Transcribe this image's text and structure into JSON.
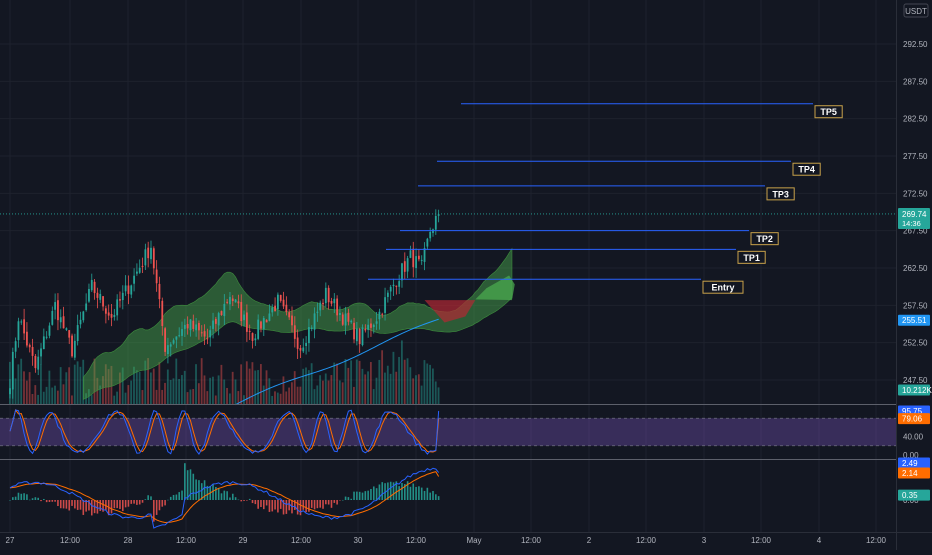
{
  "chart_data": [
    {
      "type": "candlestick",
      "currency": "USDT",
      "x_ticks": [
        "27",
        "12:00",
        "28",
        "12:00",
        "29",
        "12:00",
        "30",
        "12:00",
        "May",
        "12:00",
        "2",
        "12:00",
        "3",
        "12:00",
        "4",
        "12:00"
      ],
      "y_ticks": [
        "292.50",
        "287.50",
        "282.50",
        "277.50",
        "272.50",
        "267.50",
        "262.50",
        "257.50",
        "252.50",
        "247.50"
      ],
      "ylim": [
        244.2,
        297.5
      ],
      "last_price": 269.74,
      "last_price_label": "269.74",
      "countdown_label": "14:36",
      "ma_value": 255.51,
      "ma_label": "255.51",
      "volume_label": "10.212K",
      "colors": {
        "up": "#26a69a",
        "down": "#ef5350",
        "level": "#2962ff",
        "cloud_up": "#4caf50",
        "cloud_down": "#b22833"
      },
      "key_points": [
        {
          "x": 0,
          "y": 247.5
        },
        {
          "x": 3,
          "y": 256.0
        },
        {
          "x": 9,
          "y": 249.0
        },
        {
          "x": 16,
          "y": 257.5
        },
        {
          "x": 22,
          "y": 251.5
        },
        {
          "x": 29,
          "y": 260.0
        },
        {
          "x": 36,
          "y": 256.0
        },
        {
          "x": 45,
          "y": 262.0
        },
        {
          "x": 50,
          "y": 265.5
        },
        {
          "x": 55,
          "y": 252.0
        },
        {
          "x": 63,
          "y": 255.0
        },
        {
          "x": 70,
          "y": 253.0
        },
        {
          "x": 78,
          "y": 259.0
        },
        {
          "x": 86,
          "y": 253.5
        },
        {
          "x": 95,
          "y": 258.0
        },
        {
          "x": 103,
          "y": 252.0
        },
        {
          "x": 112,
          "y": 259.0
        },
        {
          "x": 118,
          "y": 256.0
        },
        {
          "x": 124,
          "y": 253.0
        },
        {
          "x": 131,
          "y": 256.5
        },
        {
          "x": 137,
          "y": 261.0
        },
        {
          "x": 142,
          "y": 264.0
        },
        {
          "x": 146,
          "y": 262.5
        },
        {
          "x": 149,
          "y": 267.5
        },
        {
          "x": 152,
          "y": 269.7
        }
      ],
      "levels": [
        {
          "name": "Entry",
          "price": 261.0
        },
        {
          "name": "TP1",
          "price": 265.0
        },
        {
          "name": "TP2",
          "price": 267.5
        },
        {
          "name": "TP3",
          "price": 273.5
        },
        {
          "name": "TP4",
          "price": 276.8
        },
        {
          "name": "TP5",
          "price": 284.5
        }
      ]
    },
    {
      "type": "line",
      "name": "stochastic-rsi",
      "y_ticks": [
        "80.00",
        "40.00",
        "0.00"
      ],
      "ylim": [
        -5,
        105
      ],
      "band": [
        20,
        80
      ],
      "series": [
        {
          "name": "K",
          "color": "#2962ff",
          "value_label": "95.75",
          "value": 95.75
        },
        {
          "name": "D",
          "color": "#ff6d00",
          "value_label": "79.06",
          "value": 79.06
        }
      ]
    },
    {
      "type": "bar",
      "name": "macd",
      "y_ticks": [
        "0.00"
      ],
      "ylim": [
        -3.0,
        3.4
      ],
      "series": [
        {
          "name": "MACD",
          "color": "#2962ff",
          "value_label": "2.49",
          "value": 2.49
        },
        {
          "name": "Signal",
          "color": "#ff6d00",
          "value_label": "2.14",
          "value": 2.14
        },
        {
          "name": "Histogram",
          "color": "#26a69a",
          "value_label": "0.35",
          "value": 0.35
        }
      ]
    }
  ]
}
